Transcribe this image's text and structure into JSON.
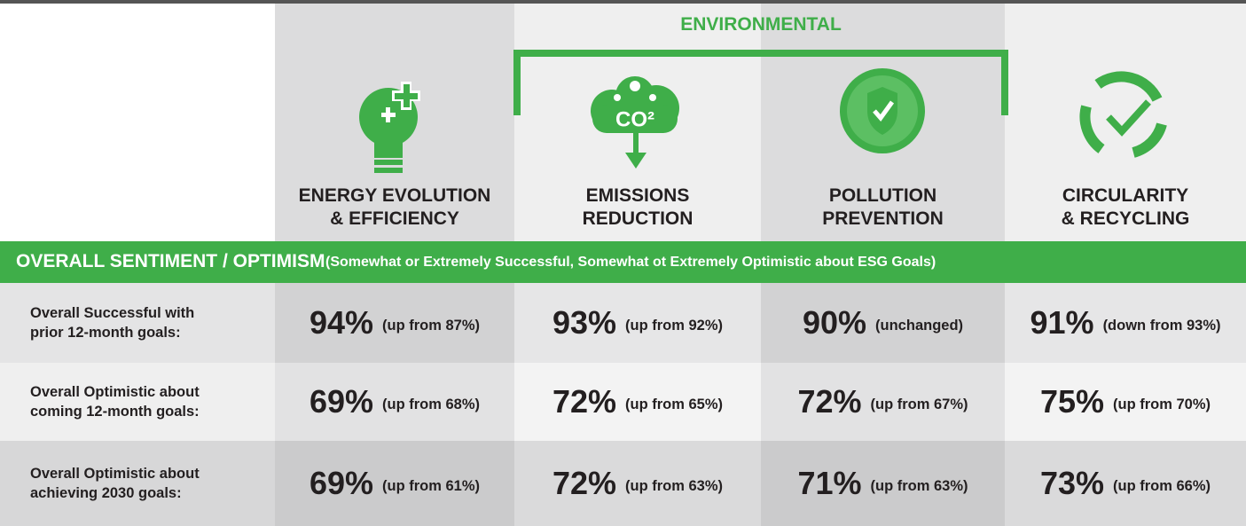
{
  "header": {
    "group": "ENVIRONMENTAL",
    "columns": [
      [
        "ENERGY EVOLUTION",
        "& EFFICIENCY"
      ],
      [
        "EMISSIONS",
        "REDUCTION"
      ],
      [
        "POLLUTION",
        "PREVENTION"
      ],
      [
        "CIRCULARITY",
        "& RECYCLING"
      ]
    ],
    "icon_text": "CO²"
  },
  "banner": {
    "title": "OVERALL SENTIMENT / OPTIMISM",
    "subtitle": "(Somewhat or Extremely Successful, Somewhat ot Extremely Optimistic about ESG Goals)"
  },
  "table": {
    "rows": [
      {
        "label": [
          "Overall Successful with",
          "prior 12-month goals:"
        ],
        "cells": [
          [
            "94%",
            "(up from 87%)"
          ],
          [
            "93%",
            "(up from 92%)"
          ],
          [
            "90%",
            "(unchanged)"
          ],
          [
            "91%",
            "(down from 93%)"
          ]
        ]
      },
      {
        "label": [
          "Overall Optimistic about",
          "coming 12-month goals:"
        ],
        "cells": [
          [
            "69%",
            "(up from 68%)"
          ],
          [
            "72%",
            "(up from 65%)"
          ],
          [
            "72%",
            "(up from 67%)"
          ],
          [
            "75%",
            "(up from 70%)"
          ]
        ]
      },
      {
        "label": [
          "Overall Optimistic about",
          "achieving 2030 goals:"
        ],
        "cells": [
          [
            "69%",
            "(up from 61%)"
          ],
          [
            "72%",
            "(up from 63%)"
          ],
          [
            "71%",
            "(up from 63%)"
          ],
          [
            "73%",
            "(up from 66%)"
          ]
        ]
      }
    ]
  }
}
